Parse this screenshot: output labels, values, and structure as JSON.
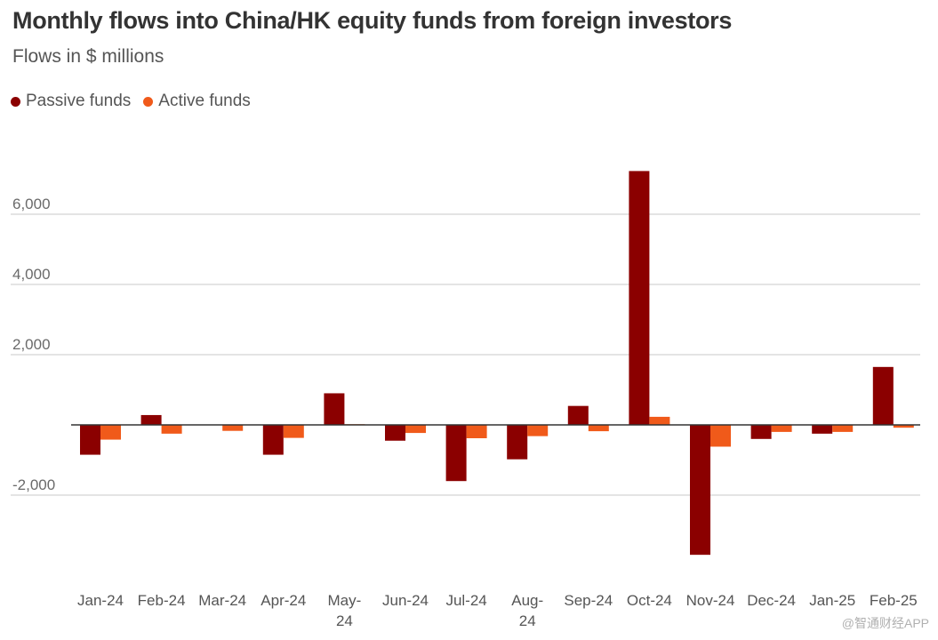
{
  "chart_data": {
    "type": "bar",
    "title": "Monthly flows into China/HK equity funds from foreign investors",
    "subtitle": "Flows in $ millions",
    "categories": [
      "Jan-24",
      "Feb-24",
      "Mar-24",
      "Apr-24",
      "May-24",
      "Jun-24",
      "Jul-24",
      "Aug-24",
      "Sep-24",
      "Oct-24",
      "Nov-24",
      "Dec-24",
      "Jan-25",
      "Feb-25"
    ],
    "category_lines": [
      [
        "Jan-24"
      ],
      [
        "Feb-24"
      ],
      [
        "Mar-24"
      ],
      [
        "Apr-24"
      ],
      [
        "May-",
        "24"
      ],
      [
        "Jun-24"
      ],
      [
        "Jul-24"
      ],
      [
        "Aug-",
        "24"
      ],
      [
        "Sep-24"
      ],
      [
        "Oct-24"
      ],
      [
        "Nov-24"
      ],
      [
        "Dec-24"
      ],
      [
        "Jan-25"
      ],
      [
        "Feb-25"
      ]
    ],
    "series": [
      {
        "name": "Passive funds",
        "color": "#8b0000",
        "values": [
          -850,
          280,
          0,
          -850,
          900,
          -450,
          -1600,
          -980,
          540,
          7230,
          -3700,
          -400,
          -250,
          1650
        ]
      },
      {
        "name": "Active funds",
        "color": "#f05a1a",
        "values": [
          -420,
          -250,
          -170,
          -370,
          20,
          -230,
          -380,
          -320,
          -180,
          230,
          -620,
          -200,
          -200,
          -80
        ]
      }
    ],
    "yticks": [
      6000,
      4000,
      2000,
      -2000
    ],
    "ytick_labels": [
      "6,000",
      "4,000",
      "2,000",
      "-2,000"
    ],
    "ylim": [
      -4400,
      7800
    ],
    "grid": true,
    "legend_position": "top-left",
    "xlabel": "",
    "ylabel": ""
  },
  "watermark": "@智通财经APP"
}
